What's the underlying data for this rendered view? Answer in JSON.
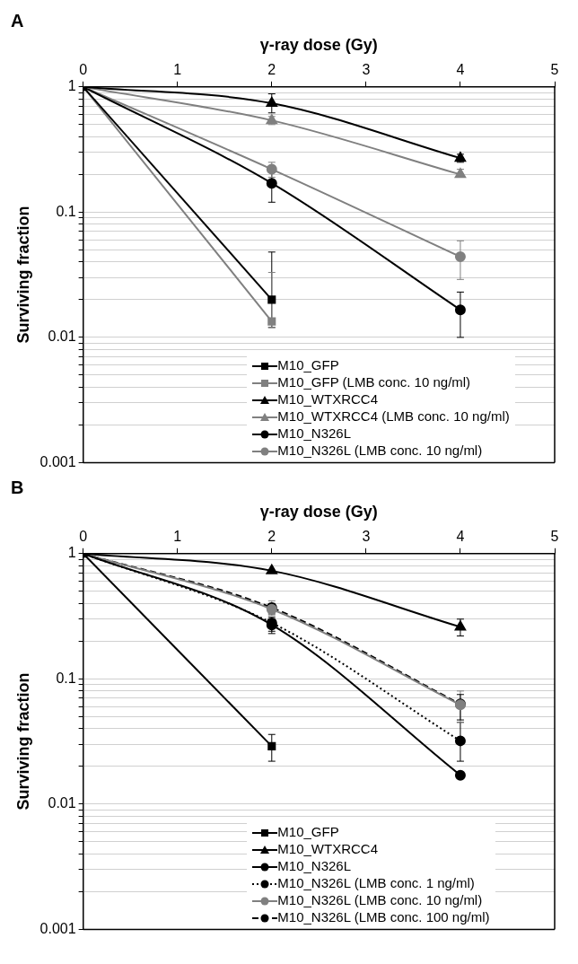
{
  "chart_data": [
    {
      "type": "line",
      "title": "A",
      "xlabel": "γ-ray dose (Gy)",
      "ylabel": "Surviving fraction",
      "x": [
        0,
        2,
        4
      ],
      "xlim": [
        0,
        5
      ],
      "xticks": [
        0,
        1,
        2,
        3,
        4,
        5
      ],
      "ylim": [
        0.001,
        1
      ],
      "log": "y",
      "grid": "y",
      "legend": "bottom",
      "yticks": [
        {
          "value": 0.001,
          "label": "0.001"
        },
        {
          "value": 0.002,
          "label": null
        },
        {
          "value": 0.003,
          "label": null
        },
        {
          "value": 0.004,
          "label": null
        },
        {
          "value": 0.005,
          "label": null
        },
        {
          "value": 0.006,
          "label": null
        },
        {
          "value": 0.007,
          "label": null
        },
        {
          "value": 0.008,
          "label": null
        },
        {
          "value": 0.009,
          "label": null
        },
        {
          "value": 0.01,
          "label": "0.01"
        },
        {
          "value": 0.02,
          "label": null
        },
        {
          "value": 0.03,
          "label": null
        },
        {
          "value": 0.04,
          "label": null
        },
        {
          "value": 0.05,
          "label": null
        },
        {
          "value": 0.06,
          "label": null
        },
        {
          "value": 0.07,
          "label": null
        },
        {
          "value": 0.08,
          "label": null
        },
        {
          "value": 0.09,
          "label": null
        },
        {
          "value": 0.1,
          "label": "0.1"
        },
        {
          "value": 0.2,
          "label": null
        },
        {
          "value": 0.3,
          "label": null
        },
        {
          "value": 0.4,
          "label": null
        },
        {
          "value": 0.5,
          "label": null
        },
        {
          "value": 0.6,
          "label": null
        },
        {
          "value": 0.7,
          "label": null
        },
        {
          "value": 0.8,
          "label": null
        },
        {
          "value": 0.9,
          "label": null
        },
        {
          "value": 1,
          "label": "1"
        }
      ],
      "series": [
        {
          "name": "M10_GFP",
          "color": "#000000",
          "marker": "square",
          "values": [
            1,
            0.02,
            null
          ],
          "errors": [
            null,
            [
              0.012,
              0.048
            ],
            null
          ]
        },
        {
          "name": "M10_GFP (LMB conc. 10 ng/ml)",
          "color": "#808080",
          "marker": "square",
          "values": [
            1,
            0.0134,
            null
          ],
          "errors": [
            null,
            [
              0.012,
              0.033
            ],
            null
          ]
        },
        {
          "name": "M10_WTXRCC4",
          "color": "#000000",
          "marker": "triangle",
          "values": [
            1,
            0.74,
            0.27
          ],
          "errors": [
            null,
            [
              0.62,
              0.88
            ],
            [
              0.25,
              0.29
            ]
          ]
        },
        {
          "name": "M10_WTXRCC4 (LMB conc. 10 ng/ml)",
          "color": "#808080",
          "marker": "triangle",
          "values": [
            1,
            0.54,
            0.2
          ],
          "errors": [
            null,
            [
              0.5,
              0.58
            ],
            [
              0.19,
              0.22
            ]
          ]
        },
        {
          "name": "M10_N326L",
          "color": "#000000",
          "marker": "circle",
          "values": [
            1,
            0.17,
            0.0166
          ],
          "errors": [
            null,
            [
              0.12,
              0.21
            ],
            [
              0.01,
              0.023
            ]
          ]
        },
        {
          "name": "M10_N326L (LMB conc. 10 ng/ml)",
          "color": "#808080",
          "marker": "circle",
          "values": [
            1,
            0.22,
            0.044
          ],
          "errors": [
            null,
            [
              0.19,
              0.25
            ],
            [
              0.029,
              0.059
            ]
          ]
        }
      ]
    },
    {
      "type": "line",
      "title": "B",
      "xlabel": "γ-ray dose (Gy)",
      "ylabel": "Surviving fraction",
      "x": [
        0,
        2,
        4
      ],
      "xlim": [
        0,
        5
      ],
      "xticks": [
        0,
        1,
        2,
        3,
        4,
        5
      ],
      "ylim": [
        0.001,
        1
      ],
      "log": "y",
      "grid": "y",
      "legend": "bottom",
      "yticks": [
        {
          "value": 0.001,
          "label": "0.001"
        },
        {
          "value": 0.002,
          "label": null
        },
        {
          "value": 0.003,
          "label": null
        },
        {
          "value": 0.004,
          "label": null
        },
        {
          "value": 0.005,
          "label": null
        },
        {
          "value": 0.006,
          "label": null
        },
        {
          "value": 0.007,
          "label": null
        },
        {
          "value": 0.008,
          "label": null
        },
        {
          "value": 0.009,
          "label": null
        },
        {
          "value": 0.01,
          "label": "0.01"
        },
        {
          "value": 0.02,
          "label": null
        },
        {
          "value": 0.03,
          "label": null
        },
        {
          "value": 0.04,
          "label": null
        },
        {
          "value": 0.05,
          "label": null
        },
        {
          "value": 0.06,
          "label": null
        },
        {
          "value": 0.07,
          "label": null
        },
        {
          "value": 0.08,
          "label": null
        },
        {
          "value": 0.09,
          "label": null
        },
        {
          "value": 0.1,
          "label": "0.1"
        },
        {
          "value": 0.2,
          "label": null
        },
        {
          "value": 0.3,
          "label": null
        },
        {
          "value": 0.4,
          "label": null
        },
        {
          "value": 0.5,
          "label": null
        },
        {
          "value": 0.6,
          "label": null
        },
        {
          "value": 0.7,
          "label": null
        },
        {
          "value": 0.8,
          "label": null
        },
        {
          "value": 0.9,
          "label": null
        },
        {
          "value": 1,
          "label": "1"
        }
      ],
      "series": [
        {
          "name": "M10_GFP",
          "color": "#000000",
          "marker": "square",
          "line_style": "solid",
          "values": [
            1,
            0.029,
            null
          ],
          "errors": [
            null,
            [
              0.022,
              0.036
            ],
            null
          ]
        },
        {
          "name": "M10_WTXRCC4",
          "color": "#000000",
          "marker": "triangle",
          "line_style": "solid",
          "values": [
            1,
            0.73,
            0.26
          ],
          "errors": [
            null,
            null,
            [
              0.22,
              0.3
            ]
          ]
        },
        {
          "name": "M10_N326L",
          "color": "#000000",
          "marker": "circle",
          "line_style": "solid",
          "values": [
            1,
            0.27,
            0.017
          ],
          "errors": [
            null,
            [
              0.23,
              0.3
            ],
            null
          ]
        },
        {
          "name": "M10_N326L (LMB conc. 1 ng/ml)",
          "color": "#000000",
          "marker": "circle",
          "line_style": "dotted",
          "values": [
            1,
            0.28,
            0.032
          ],
          "errors": [
            null,
            [
              0.24,
              0.31
            ],
            [
              0.022,
              0.045
            ]
          ]
        },
        {
          "name": "M10_N326L (LMB conc. 10 ng/ml)",
          "color": "#808080",
          "marker": "circle",
          "line_style": "solid",
          "values": [
            1,
            0.36,
            0.062
          ],
          "errors": [
            null,
            [
              0.32,
              0.42
            ],
            [
              0.045,
              0.08
            ]
          ]
        },
        {
          "name": "M10_N326L (LMB conc. 100 ng/ml)",
          "color": "#000000",
          "marker": "circle",
          "line_style": "dashed",
          "values": [
            1,
            0.37,
            0.063
          ],
          "errors": [
            null,
            [
              0.33,
              0.4
            ],
            [
              0.047,
              0.075
            ]
          ]
        }
      ]
    }
  ]
}
